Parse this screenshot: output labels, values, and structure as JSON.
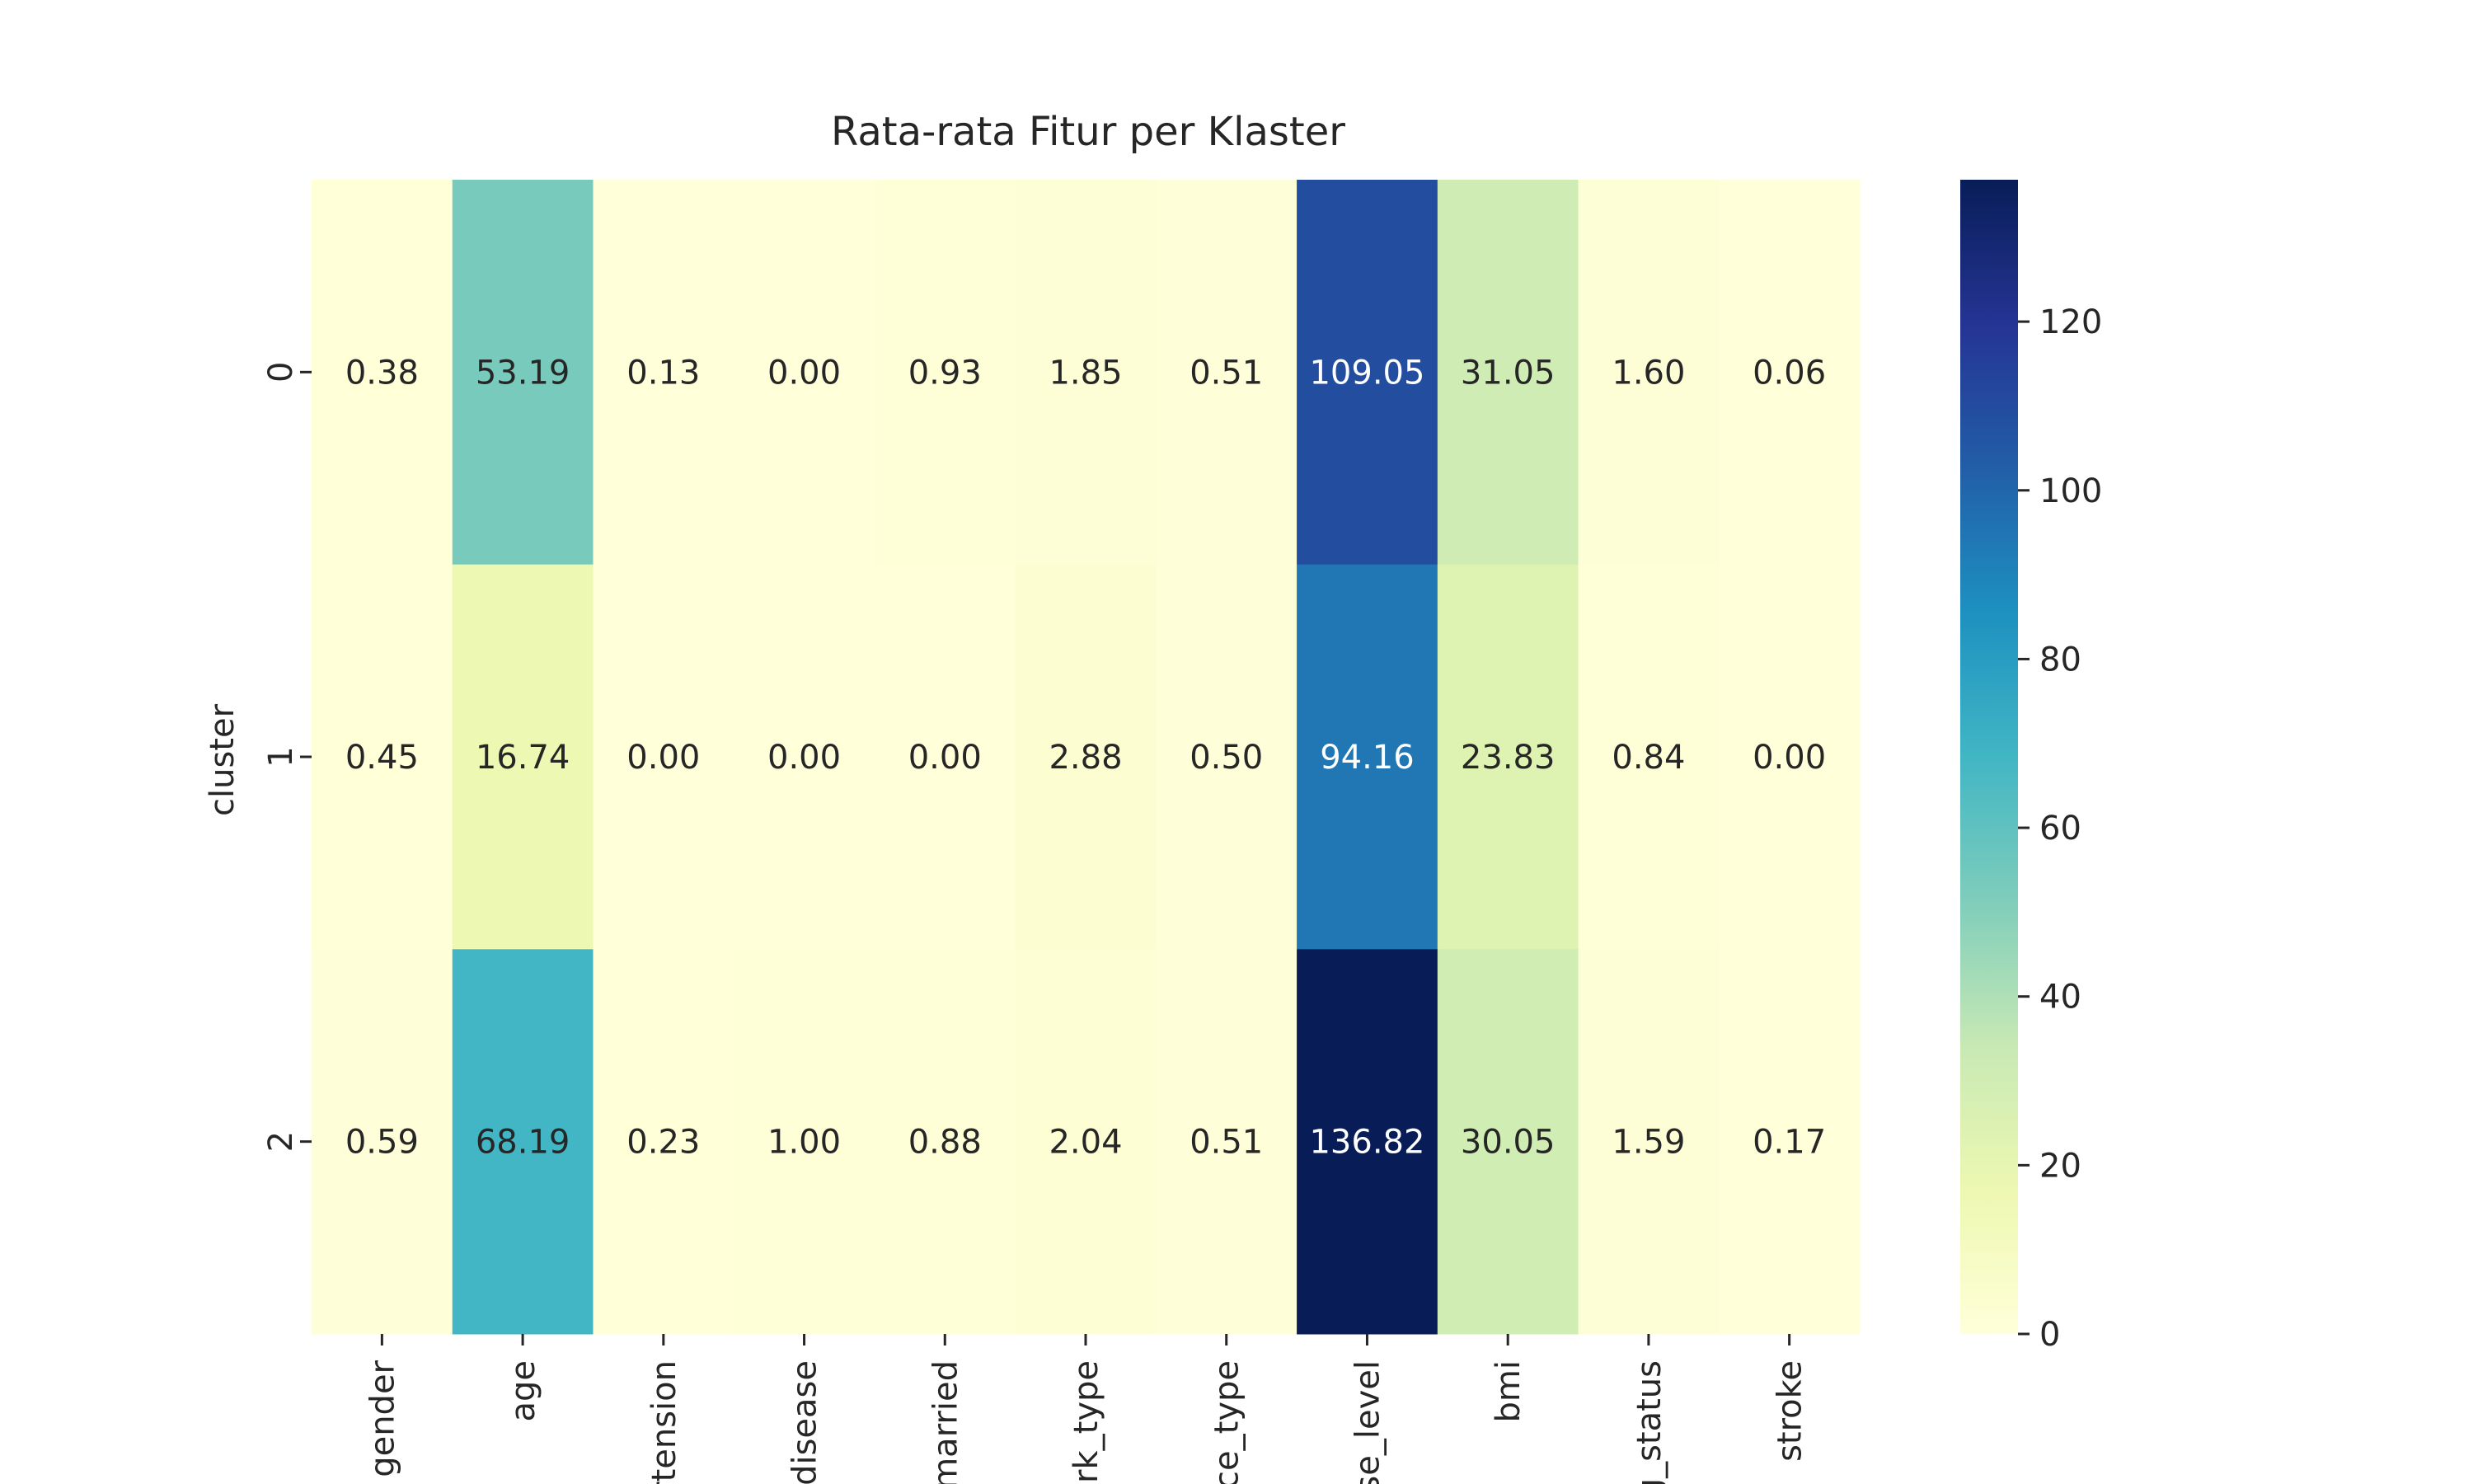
{
  "chart_data": {
    "type": "heatmap",
    "title": "Rata-rata Fitur per Klaster",
    "xlabel": "",
    "ylabel": "cluster",
    "x_categories": [
      "gender",
      "age",
      "hypertension",
      "heart_disease",
      "ever_married",
      "work_type",
      "Residence_type",
      "avg_glucose_level",
      "bmi",
      "smoking_status",
      "stroke"
    ],
    "x_tick_labels_visible": [
      "gender",
      "age",
      "rtension",
      "disease",
      "married",
      "ork_type",
      "ce_type",
      "se_level",
      "bmi",
      "g_status",
      "stroke"
    ],
    "y_categories": [
      "0",
      "1",
      "2"
    ],
    "values": [
      [
        0.38,
        53.19,
        0.13,
        0.0,
        0.93,
        1.85,
        0.51,
        109.05,
        31.05,
        1.6,
        0.06
      ],
      [
        0.45,
        16.74,
        0.0,
        0.0,
        0.0,
        2.88,
        0.5,
        94.16,
        23.83,
        0.84,
        0.0
      ],
      [
        0.59,
        68.19,
        0.23,
        1.0,
        0.88,
        2.04,
        0.51,
        136.82,
        30.05,
        1.59,
        0.17
      ]
    ],
    "value_format": "0.00",
    "colormap": "YlGnBu",
    "colorbar": {
      "range": [
        0,
        136.82
      ],
      "ticks": [
        0,
        20,
        40,
        60,
        80,
        100,
        120
      ],
      "tick_labels": [
        "0",
        "20",
        "40",
        "60",
        "80",
        "100",
        "120"
      ],
      "placement": "right"
    },
    "grid": false,
    "legend": "none"
  }
}
